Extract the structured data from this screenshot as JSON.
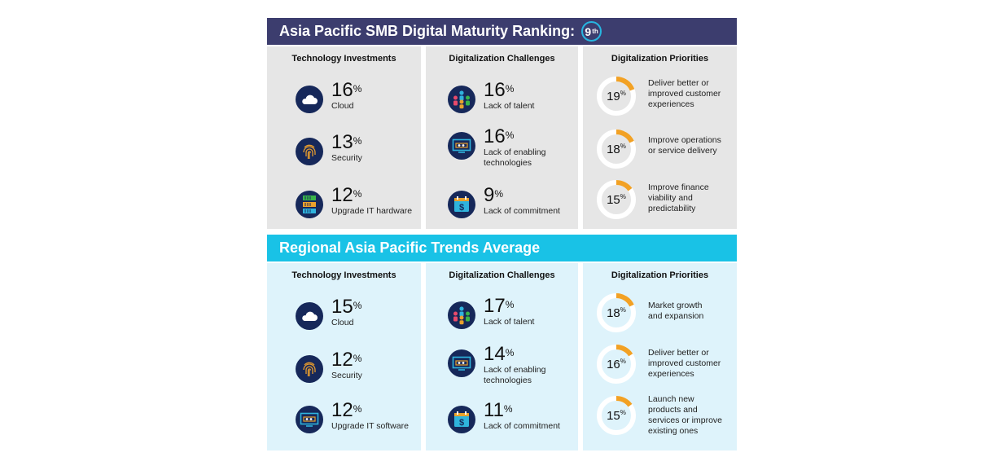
{
  "banner1": {
    "title": "Asia Pacific SMB Digital Maturity Ranking:",
    "rank": "9",
    "rank_suffix": "th"
  },
  "banner2": {
    "title": "Regional Asia Pacific Trends Average"
  },
  "section1": {
    "tech": {
      "title": "Technology Investments",
      "items": [
        {
          "value": "16",
          "unit": "%",
          "label": "Cloud",
          "icon": "cloud-icon"
        },
        {
          "value": "13",
          "unit": "%",
          "label": "Security",
          "icon": "fingerprint-icon"
        },
        {
          "value": "12",
          "unit": "%",
          "label": "Upgrade IT hardware",
          "icon": "server-icon"
        }
      ]
    },
    "challenges": {
      "title": "Digitalization Challenges",
      "items": [
        {
          "value": "16",
          "unit": "%",
          "label": "Lack of talent",
          "icon": "people-icon"
        },
        {
          "value": "16",
          "unit": "%",
          "label": "Lack of enabling technologies",
          "icon": "monitor-gear-icon"
        },
        {
          "value": "9",
          "unit": "%",
          "label": "Lack of commitment",
          "icon": "calendar-dollar-icon"
        }
      ]
    },
    "priorities": {
      "title": "Digitalization Priorities",
      "items": [
        {
          "value": "19",
          "unit": "%",
          "pct": 19,
          "text": [
            "Deliver better or",
            "improved customer",
            "experiences"
          ]
        },
        {
          "value": "18",
          "unit": "%",
          "pct": 18,
          "text": [
            "Improve operations",
            "or service delivery"
          ]
        },
        {
          "value": "15",
          "unit": "%",
          "pct": 15,
          "text": [
            "Improve finance",
            "viability and",
            "predictability"
          ]
        }
      ]
    }
  },
  "section2": {
    "tech": {
      "title": "Technology Investments",
      "items": [
        {
          "value": "15",
          "unit": "%",
          "label": "Cloud",
          "icon": "cloud-icon"
        },
        {
          "value": "12",
          "unit": "%",
          "label": "Security",
          "icon": "fingerprint-icon"
        },
        {
          "value": "12",
          "unit": "%",
          "label": "Upgrade IT software",
          "icon": "monitor-gear-icon"
        }
      ]
    },
    "challenges": {
      "title": "Digitalization Challenges",
      "items": [
        {
          "value": "17",
          "unit": "%",
          "label": "Lack of talent",
          "icon": "people-icon"
        },
        {
          "value": "14",
          "unit": "%",
          "label": "Lack of enabling technologies",
          "icon": "monitor-gear-icon"
        },
        {
          "value": "11",
          "unit": "%",
          "label": "Lack of commitment",
          "icon": "calendar-dollar-icon"
        }
      ]
    },
    "priorities": {
      "title": "Digitalization Priorities",
      "items": [
        {
          "value": "18",
          "unit": "%",
          "pct": 18,
          "text": [
            "Market growth",
            "and expansion"
          ]
        },
        {
          "value": "16",
          "unit": "%",
          "pct": 16,
          "text": [
            "Deliver better or",
            "improved customer",
            "experiences"
          ]
        },
        {
          "value": "15",
          "unit": "%",
          "pct": 15,
          "text": [
            "Launch new",
            "products and",
            "services or improve",
            "existing ones"
          ]
        }
      ]
    }
  },
  "colors": {
    "navy": "#3c3d6e",
    "cyan": "#19c2e6",
    "iconbg": "#16285a",
    "ring": "#f2a124",
    "ringtrack": "#ffffff"
  }
}
